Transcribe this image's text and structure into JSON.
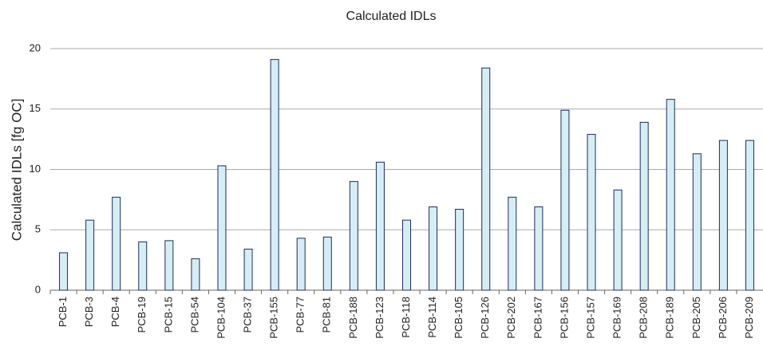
{
  "chart_data": {
    "type": "bar",
    "title": "Calculated IDLs",
    "y_label": "Calculated IDLs [fg OC]",
    "categories": [
      "PCB-1",
      "PCB-3",
      "PCB-4",
      "PCB-19",
      "PCB-15",
      "PCB-54",
      "PCB-104",
      "PCB-37",
      "PCB-155",
      "PCB-77",
      "PCB-81",
      "PCB-188",
      "PCB-123",
      "PCB-118",
      "PCB-114",
      "PCB-105",
      "PCB-126",
      "PCB-202",
      "PCB-167",
      "PCB-156",
      "PCB-157",
      "PCB-169",
      "PCB-208",
      "PCB-189",
      "PCB-205",
      "PCB-206",
      "PCB-209"
    ],
    "values": [
      3.1,
      5.8,
      7.7,
      4.0,
      4.1,
      2.6,
      10.3,
      3.4,
      19.1,
      4.3,
      4.4,
      9.0,
      10.6,
      5.8,
      6.9,
      6.7,
      18.4,
      7.7,
      6.9,
      14.9,
      12.9,
      8.3,
      13.9,
      15.8,
      11.3,
      12.4,
      12.4
    ],
    "color": "#d5edf4",
    "edge_color": "#1f2d5a",
    "ylim": [
      0,
      20
    ],
    "yticks": [
      0,
      5,
      10,
      15,
      20
    ],
    "grid": true
  }
}
